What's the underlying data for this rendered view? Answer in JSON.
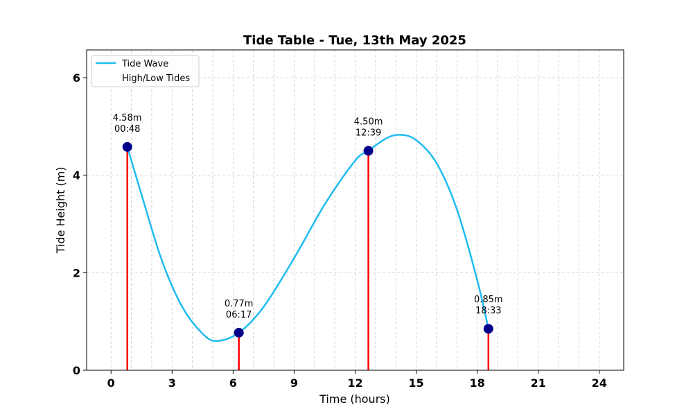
{
  "chart_data": {
    "type": "line",
    "title": "Tide Table - Tue, 13th May 2025",
    "xlabel": "Time (hours)",
    "ylabel": "Tide Height (m)",
    "xlim": [
      -1.2,
      25.2
    ],
    "ylim": [
      0,
      6.57
    ],
    "x_ticks": [
      0,
      3,
      6,
      9,
      12,
      15,
      18,
      21,
      24
    ],
    "y_ticks": [
      0,
      2,
      4,
      6
    ],
    "grid": true,
    "legend_position": "top-left",
    "colors": {
      "wave": "#1ebcf0",
      "stem": "#ff0000",
      "marker": "#00008b",
      "grid": "#cccccc"
    },
    "series": [
      {
        "name": "Tide Wave",
        "x": [
          0.8,
          1.5,
          2.5,
          3.5,
          4.5,
          5.2,
          6.283,
          7.5,
          9,
          10.5,
          12,
          12.65,
          13.5,
          14.2,
          15,
          16,
          17,
          18,
          18.55
        ],
        "y": [
          4.58,
          3.6,
          2.25,
          1.3,
          0.75,
          0.6,
          0.77,
          1.3,
          2.3,
          3.4,
          4.3,
          4.5,
          4.75,
          4.83,
          4.72,
          4.25,
          3.3,
          1.85,
          0.85
        ]
      },
      {
        "name": "High/Low Tides",
        "x": [
          0.8,
          6.283,
          12.65,
          18.55
        ],
        "y": [
          4.58,
          0.77,
          4.5,
          0.85
        ]
      }
    ],
    "annotations": [
      {
        "height": "4.58m",
        "time": "00:48"
      },
      {
        "height": "0.77m",
        "time": "06:17"
      },
      {
        "height": "4.50m",
        "time": "12:39"
      },
      {
        "height": "0.85m",
        "time": "18:33"
      }
    ]
  }
}
